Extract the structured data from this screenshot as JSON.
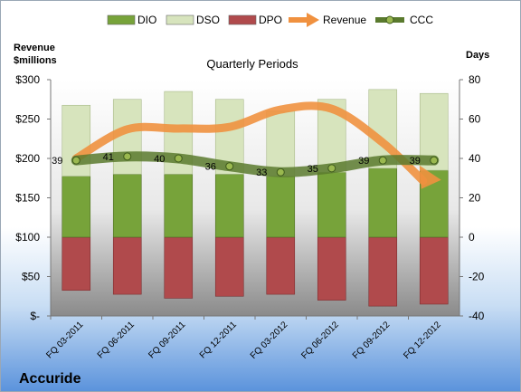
{
  "company": "Accuride",
  "chart_data": {
    "type": "bar",
    "title": "Quarterly Periods",
    "categories": [
      "FQ 03-2011",
      "FQ 06-2011",
      "FQ 09-2011",
      "FQ 12-2011",
      "FQ 03-2012",
      "FQ 06-2012",
      "FQ 09-2012",
      "FQ 12-2012"
    ],
    "ylabel_left": "Revenue\n$millions",
    "ylabel_right": "Days",
    "ylim_left": [
      0,
      300
    ],
    "ylim_right": [
      -40,
      80
    ],
    "yticks_left": [
      "$-",
      "$50",
      "$100",
      "$150",
      "$200",
      "$250",
      "$300"
    ],
    "yticks_right": [
      "-40",
      "-20",
      "0",
      "20",
      "40",
      "60",
      "80"
    ],
    "legend_position": "top",
    "series": [
      {
        "name": "DIO",
        "type": "stacked-bar",
        "axis": "right",
        "color": "#77a33a",
        "values": [
          31,
          32,
          32,
          32,
          31,
          33,
          35,
          34
        ]
      },
      {
        "name": "DSO",
        "type": "stacked-bar",
        "axis": "right",
        "color": "#d7e4bd",
        "values": [
          36,
          38,
          42,
          38,
          33,
          37,
          40,
          39
        ]
      },
      {
        "name": "DPO",
        "type": "bar-negative",
        "axis": "right",
        "color": "#b04a4c",
        "values": [
          -27,
          -29,
          -31,
          -30,
          -29,
          -32,
          -35,
          -34
        ]
      },
      {
        "name": "Revenue",
        "type": "line",
        "axis": "left",
        "color": "#f0913f",
        "values": [
          200,
          237,
          238,
          240,
          262,
          263,
          220,
          175
        ]
      },
      {
        "name": "CCC",
        "type": "line",
        "axis": "right",
        "color": "#5a7a2e",
        "values": [
          39,
          41,
          40,
          36,
          33,
          35,
          39,
          39
        ]
      }
    ],
    "ccc_labels": [
      "39",
      "41",
      "40",
      "36",
      "33",
      "35",
      "39",
      "39"
    ],
    "grid": false
  }
}
